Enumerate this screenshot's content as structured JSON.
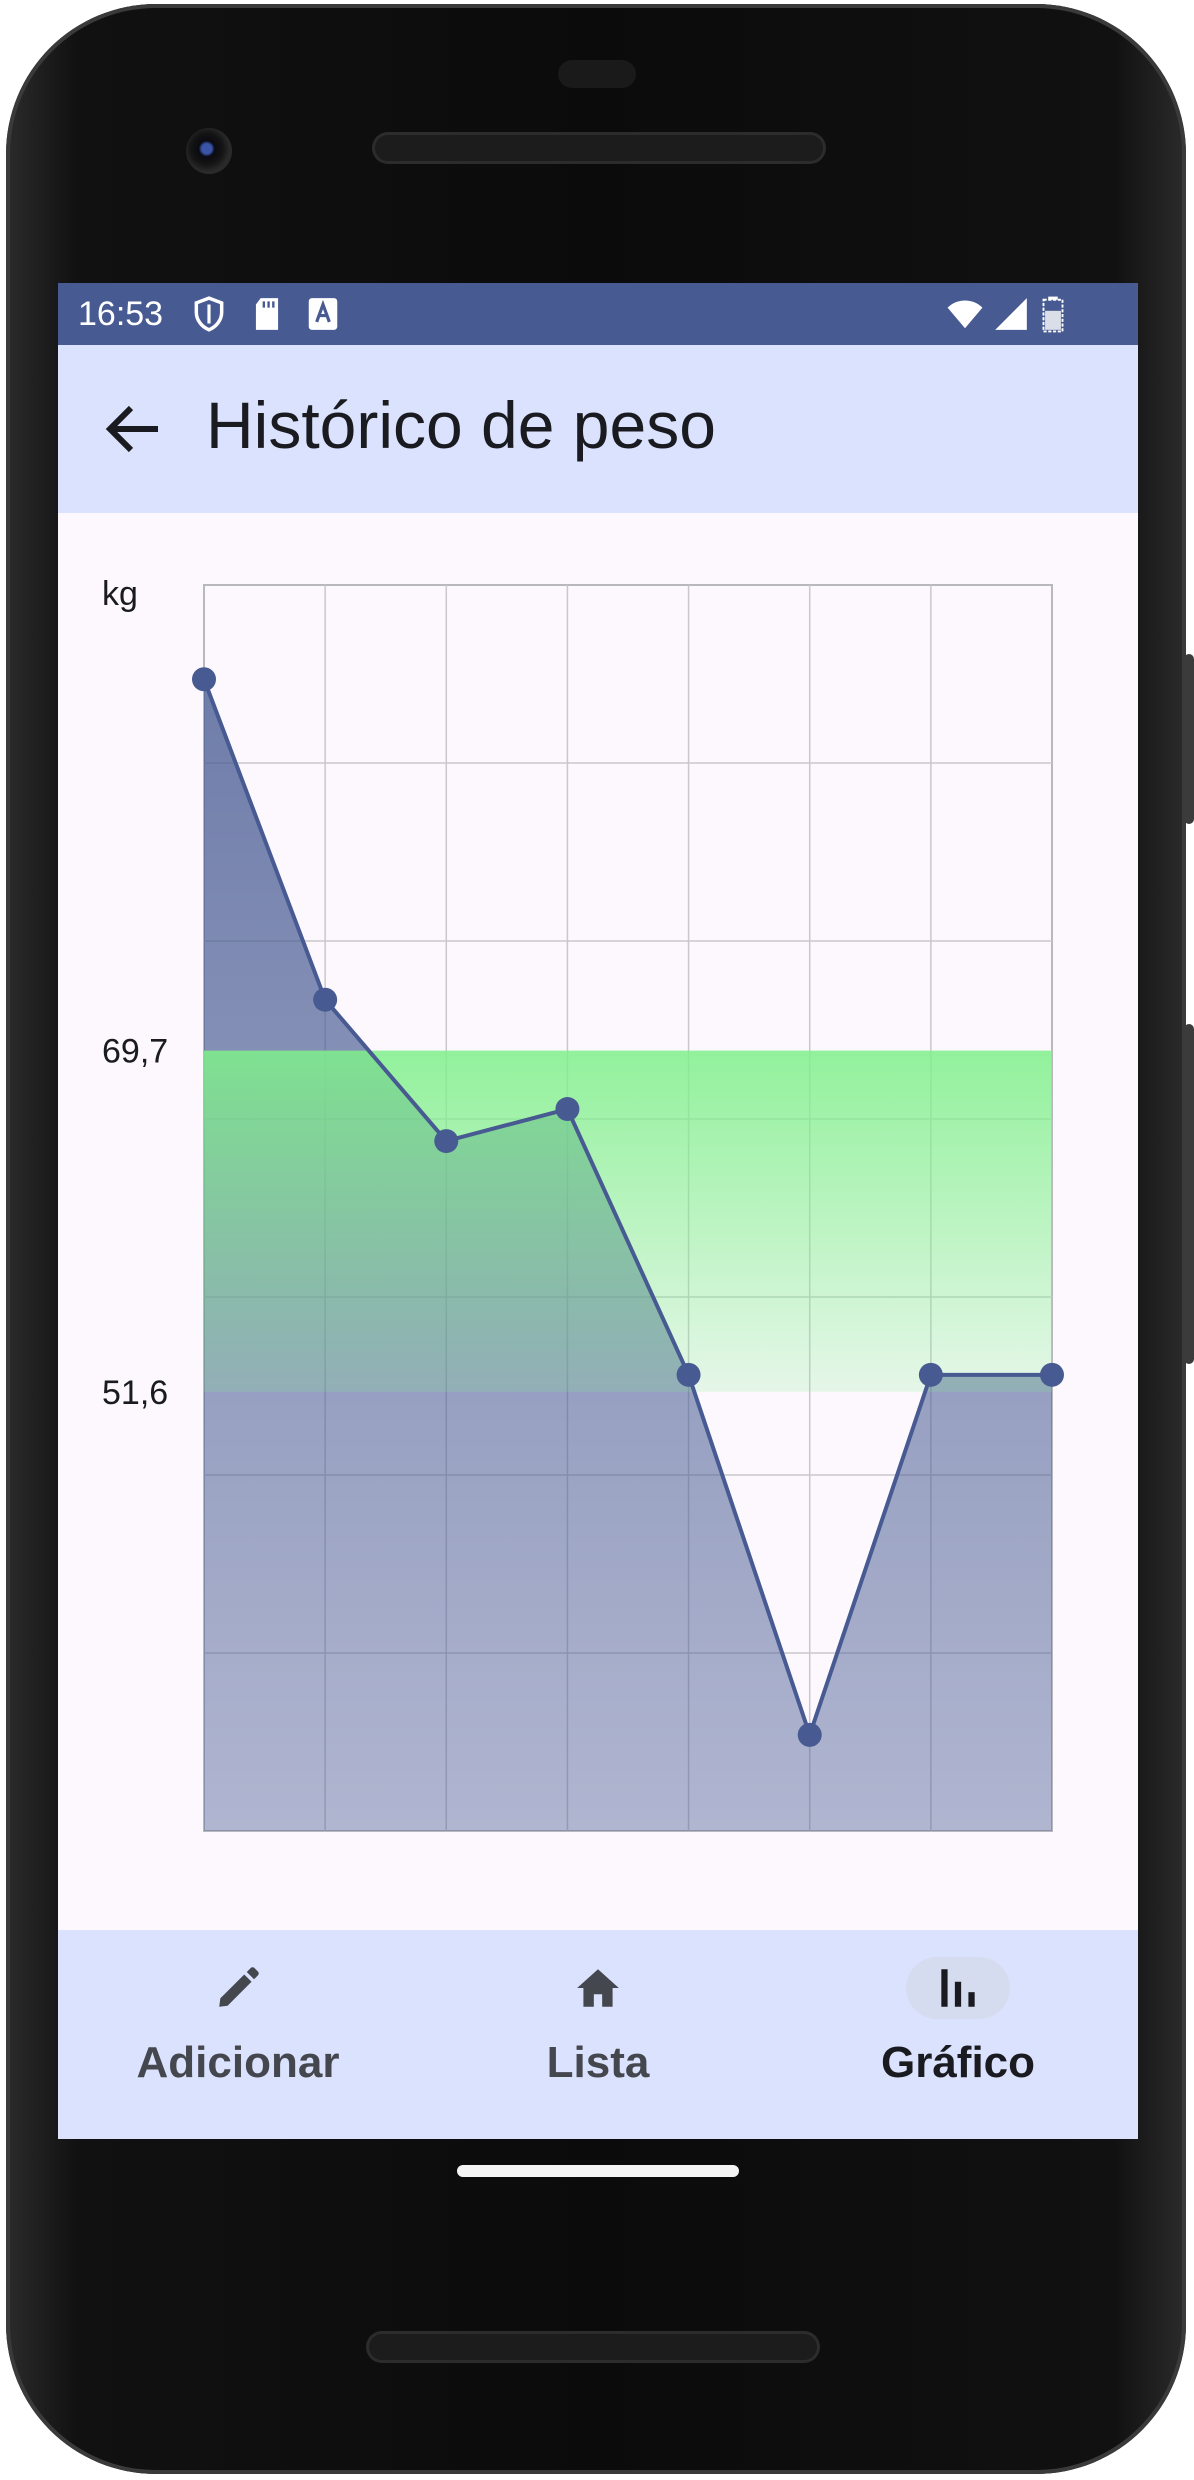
{
  "status_bar": {
    "time": "16:53",
    "left_icons": [
      "shield-icon",
      "sd-card-icon",
      "font-a-icon"
    ],
    "right_icons": [
      "wifi-icon",
      "signal-icon",
      "battery-icon"
    ]
  },
  "header": {
    "title": "Histórico de peso",
    "back_icon": "arrow-left-icon"
  },
  "chart_data": {
    "type": "line",
    "y_unit_label": "kg",
    "y_tick_labels": [
      "69,7",
      "51,6"
    ],
    "x": [
      1,
      2,
      3,
      4,
      5,
      6,
      7,
      8
    ],
    "values": [
      89.4,
      72.4,
      64.9,
      66.6,
      52.5,
      33.4,
      52.5,
      52.5
    ],
    "healthy_range": [
      51.6,
      69.7
    ],
    "ylim": [
      28.3,
      94.4
    ],
    "grid": true,
    "fill_under_line": true,
    "colors": {
      "line": "#475a92",
      "area": "#475a92",
      "healthy_band": "#7ff08a",
      "grid": "#c8c8cc"
    }
  },
  "bottom_nav": {
    "items": [
      {
        "label": "Adicionar",
        "icon": "pencil-icon",
        "active": false
      },
      {
        "label": "Lista",
        "icon": "home-icon",
        "active": false
      },
      {
        "label": "Gráfico",
        "icon": "bar-chart-icon",
        "active": true
      }
    ]
  },
  "colors": {
    "status_bar": "#475a92",
    "top_bar": "#dae2fd",
    "nav_bar": "#dae2fd",
    "screen_bg": "#fcf8fd"
  }
}
